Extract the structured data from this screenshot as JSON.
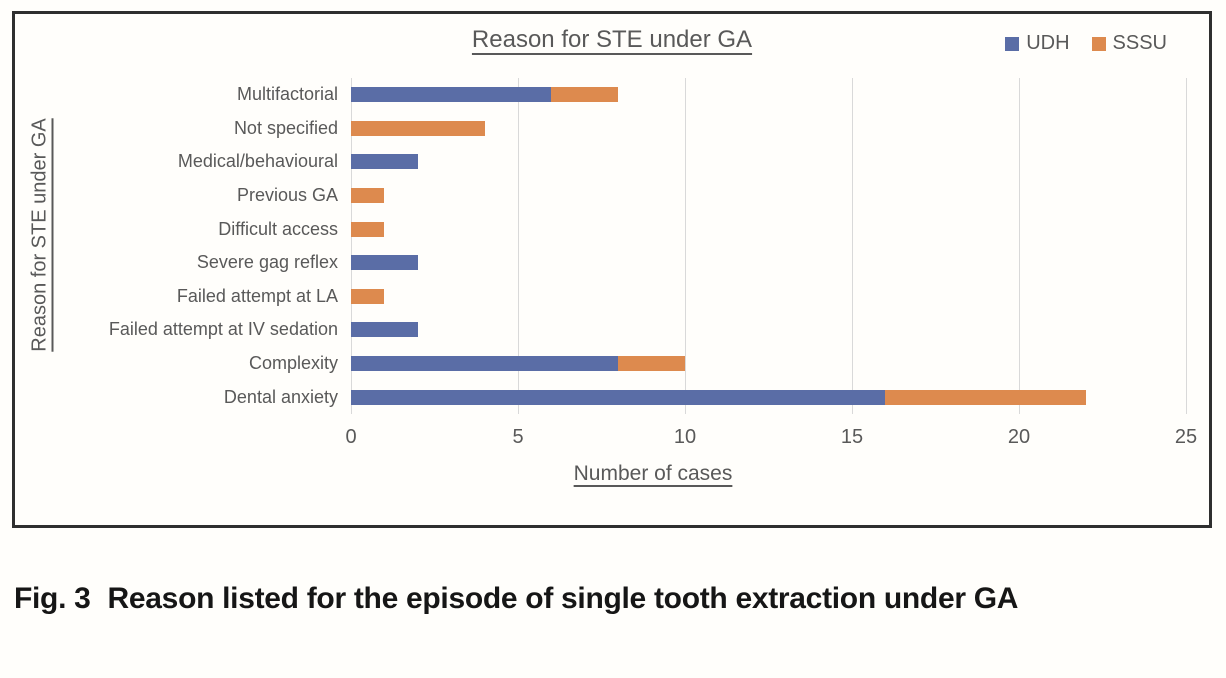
{
  "figure": {
    "caption_label": "Fig. 3",
    "caption_text": "Reason listed for the episode of single tooth extraction under GA"
  },
  "chart_data": {
    "type": "bar",
    "orientation": "horizontal",
    "stacked": true,
    "title": "Reason for STE under GA",
    "xlabel": "Number of cases",
    "ylabel": "Reason for STE under GA",
    "xlim": [
      0,
      25
    ],
    "xticks": [
      0,
      5,
      10,
      15,
      20,
      25
    ],
    "grid": "vertical-gridlines-on",
    "legend_position": "top-right",
    "categories": [
      "Multifactorial",
      "Not specified",
      "Medical/behavioural",
      "Previous GA",
      "Difficult access",
      "Severe gag reflex",
      "Failed attempt at LA",
      "Failed attempt at IV sedation",
      "Complexity",
      "Dental anxiety"
    ],
    "series": [
      {
        "name": "UDH",
        "color": "#5a6da6",
        "values": [
          6,
          0,
          2,
          0,
          0,
          2,
          0,
          2,
          8,
          16
        ]
      },
      {
        "name": "SSSU",
        "color": "#dd8a4e",
        "values": [
          2,
          4,
          0,
          1,
          1,
          0,
          1,
          0,
          2,
          6
        ]
      }
    ]
  },
  "colors": {
    "udh_blue": "#5a6da6",
    "sssu_orange": "#dd8a4e",
    "chart_text_gray": "#595959",
    "gridline_gray": "#d9d9d9",
    "box_border": "#2f2f2f",
    "caption_black": "#161616"
  }
}
